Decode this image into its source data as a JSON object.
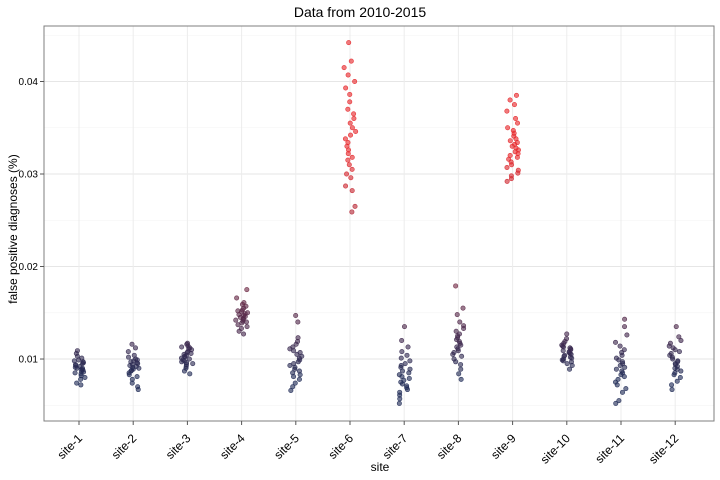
{
  "chart_data": {
    "type": "scatter",
    "title": "Data from 2010-2015",
    "xlabel": "site",
    "ylabel": "false positive diagnoses (%)",
    "categories": [
      "site-1",
      "site-2",
      "site-3",
      "site-4",
      "site-5",
      "site-6",
      "site-7",
      "site-8",
      "site-9",
      "site-10",
      "site-11",
      "site-12"
    ],
    "y_ticks": [
      0.01,
      0.02,
      0.03,
      0.04
    ],
    "y_tick_labels": [
      "0.01",
      "0.02",
      "0.03",
      "0.04"
    ],
    "ylim": [
      0.0033,
      0.046
    ],
    "grid": true,
    "jitter": "horizontal",
    "color_scale": {
      "low": "#1e2a55",
      "high": "#e6262a",
      "low_value": 0.008,
      "high_value": 0.032
    },
    "series": [
      {
        "site": "site-1",
        "values": [
          0.0072,
          0.0074,
          0.0078,
          0.008,
          0.0082,
          0.0084,
          0.0085,
          0.0086,
          0.0087,
          0.0088,
          0.0089,
          0.009,
          0.009,
          0.0091,
          0.0092,
          0.0093,
          0.0094,
          0.0095,
          0.0096,
          0.0097,
          0.0098,
          0.0099,
          0.0101,
          0.0103,
          0.0106,
          0.0109
        ]
      },
      {
        "site": "site-2",
        "values": [
          0.0067,
          0.007,
          0.0074,
          0.0078,
          0.0081,
          0.0083,
          0.0085,
          0.0087,
          0.0088,
          0.0089,
          0.009,
          0.0091,
          0.0092,
          0.0093,
          0.0094,
          0.0095,
          0.0096,
          0.0097,
          0.0098,
          0.0099,
          0.01,
          0.0102,
          0.0104,
          0.0108,
          0.0112,
          0.0116
        ]
      },
      {
        "site": "site-3",
        "values": [
          0.0084,
          0.0087,
          0.009,
          0.0092,
          0.0094,
          0.0095,
          0.0096,
          0.0097,
          0.0098,
          0.0099,
          0.01,
          0.0101,
          0.0102,
          0.0103,
          0.0104,
          0.0105,
          0.0106,
          0.0107,
          0.0108,
          0.011,
          0.0111,
          0.0112,
          0.0113,
          0.0114,
          0.0116,
          0.0117
        ]
      },
      {
        "site": "site-4",
        "values": [
          0.0127,
          0.013,
          0.0133,
          0.0135,
          0.0137,
          0.0139,
          0.014,
          0.0141,
          0.0142,
          0.0143,
          0.0144,
          0.0145,
          0.0146,
          0.0147,
          0.0148,
          0.0149,
          0.015,
          0.0151,
          0.0152,
          0.0153,
          0.0155,
          0.0157,
          0.0159,
          0.0161,
          0.0166,
          0.0175
        ]
      },
      {
        "site": "site-5",
        "values": [
          0.0066,
          0.007,
          0.0074,
          0.0078,
          0.0081,
          0.0083,
          0.0085,
          0.0087,
          0.0089,
          0.0091,
          0.0093,
          0.0095,
          0.0097,
          0.0099,
          0.0101,
          0.0103,
          0.0105,
          0.0107,
          0.0109,
          0.0111,
          0.0113,
          0.0116,
          0.0119,
          0.0123,
          0.014,
          0.0147
        ]
      },
      {
        "site": "site-6",
        "values": [
          0.0259,
          0.0265,
          0.0282,
          0.0287,
          0.0296,
          0.03,
          0.0305,
          0.031,
          0.0315,
          0.0318,
          0.0322,
          0.0326,
          0.033,
          0.0334,
          0.0338,
          0.0342,
          0.0346,
          0.035,
          0.0355,
          0.036,
          0.0365,
          0.037,
          0.0378,
          0.0386,
          0.0393,
          0.04,
          0.0407,
          0.0415,
          0.0422,
          0.0442
        ]
      },
      {
        "site": "site-7",
        "values": [
          0.0052,
          0.0057,
          0.0061,
          0.0064,
          0.0067,
          0.0069,
          0.0071,
          0.0073,
          0.0075,
          0.0077,
          0.0079,
          0.0081,
          0.0083,
          0.0085,
          0.0087,
          0.0089,
          0.0091,
          0.0093,
          0.0095,
          0.0098,
          0.0101,
          0.0104,
          0.0108,
          0.0113,
          0.012,
          0.0135
        ]
      },
      {
        "site": "site-8",
        "values": [
          0.0078,
          0.0084,
          0.0089,
          0.0094,
          0.0097,
          0.01,
          0.0103,
          0.0105,
          0.0107,
          0.0109,
          0.0111,
          0.0113,
          0.0115,
          0.0117,
          0.0119,
          0.0121,
          0.0123,
          0.0125,
          0.0127,
          0.013,
          0.0133,
          0.0136,
          0.014,
          0.0148,
          0.0155,
          0.0179
        ]
      },
      {
        "site": "site-9",
        "values": [
          0.0292,
          0.0295,
          0.0298,
          0.0301,
          0.0304,
          0.0307,
          0.031,
          0.0313,
          0.0316,
          0.0318,
          0.032,
          0.0322,
          0.0324,
          0.0326,
          0.0328,
          0.033,
          0.0332,
          0.0334,
          0.0336,
          0.0338,
          0.0341,
          0.0344,
          0.0347,
          0.035,
          0.0355,
          0.036,
          0.0368,
          0.0375,
          0.038,
          0.0385
        ]
      },
      {
        "site": "site-10",
        "values": [
          0.0089,
          0.0093,
          0.0095,
          0.0097,
          0.0098,
          0.0099,
          0.01,
          0.0101,
          0.0102,
          0.0103,
          0.0104,
          0.0105,
          0.0106,
          0.0107,
          0.0108,
          0.0109,
          0.011,
          0.0111,
          0.0112,
          0.0113,
          0.0114,
          0.0115,
          0.0117,
          0.0119,
          0.0122,
          0.0127
        ]
      },
      {
        "site": "site-11",
        "values": [
          0.0052,
          0.0055,
          0.0064,
          0.0068,
          0.0072,
          0.0075,
          0.0078,
          0.0081,
          0.0083,
          0.0085,
          0.0087,
          0.0089,
          0.0091,
          0.0093,
          0.0095,
          0.0097,
          0.0099,
          0.0101,
          0.0104,
          0.0107,
          0.011,
          0.0114,
          0.0118,
          0.0126,
          0.0135,
          0.0143
        ]
      },
      {
        "site": "site-12",
        "values": [
          0.0067,
          0.0072,
          0.0076,
          0.008,
          0.0083,
          0.0085,
          0.0087,
          0.0089,
          0.009,
          0.0092,
          0.0094,
          0.0095,
          0.0097,
          0.0098,
          0.01,
          0.0102,
          0.0104,
          0.0106,
          0.0108,
          0.011,
          0.0112,
          0.0114,
          0.0117,
          0.012,
          0.0124,
          0.0135
        ]
      }
    ]
  }
}
